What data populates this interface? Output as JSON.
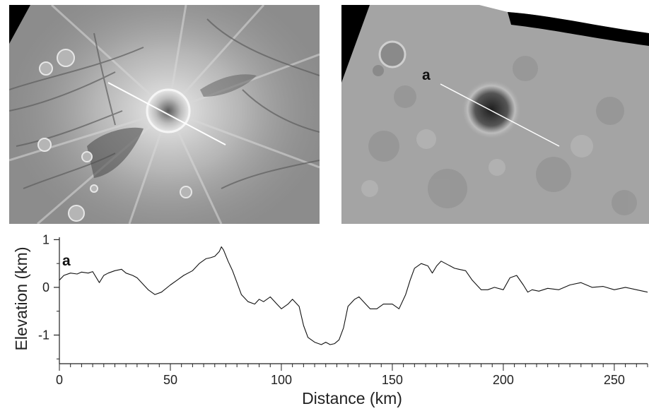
{
  "left_panel": {},
  "right_panel": {
    "profile_label": "a"
  },
  "chart_data": {
    "type": "line",
    "panel_label": "a",
    "xlabel": "Distance (km)",
    "ylabel": "Elevation (km)",
    "xlim": [
      0,
      265
    ],
    "ylim": [
      -1.6,
      1.05
    ],
    "xticks": [
      0,
      50,
      100,
      150,
      200,
      250
    ],
    "yticks": [
      1,
      0,
      -1
    ],
    "xtick_labels": [
      "0",
      "50",
      "100",
      "150",
      "200",
      "250"
    ],
    "ytick_labels": [
      "1",
      "0",
      "-1"
    ],
    "series": [
      {
        "color": "#111111",
        "x": [
          0,
          2,
          5,
          8,
          10,
          13,
          15,
          18,
          20,
          22,
          25,
          28,
          30,
          33,
          35,
          38,
          40,
          43,
          46,
          50,
          53,
          56,
          60,
          63,
          66,
          68,
          70,
          72,
          73,
          74,
          76,
          78,
          80,
          82,
          85,
          88,
          90,
          92,
          95,
          98,
          100,
          103,
          105,
          108,
          110,
          112,
          115,
          118,
          120,
          122,
          124,
          126,
          128,
          130,
          133,
          135,
          138,
          140,
          143,
          146,
          150,
          153,
          156,
          158,
          160,
          163,
          166,
          168,
          170,
          172,
          174,
          176,
          178,
          180,
          183,
          186,
          190,
          193,
          196,
          200,
          203,
          206,
          209,
          211,
          213,
          216,
          220,
          225,
          230,
          235,
          240,
          245,
          250,
          255,
          260,
          265
        ],
        "y": [
          0.15,
          0.25,
          0.3,
          0.28,
          0.32,
          0.3,
          0.33,
          0.1,
          0.25,
          0.3,
          0.35,
          0.38,
          0.3,
          0.25,
          0.2,
          0.05,
          -0.05,
          -0.15,
          -0.1,
          0.05,
          0.15,
          0.25,
          0.35,
          0.5,
          0.6,
          0.62,
          0.65,
          0.75,
          0.85,
          0.78,
          0.55,
          0.35,
          0.1,
          -0.15,
          -0.3,
          -0.35,
          -0.25,
          -0.3,
          -0.2,
          -0.35,
          -0.45,
          -0.35,
          -0.25,
          -0.4,
          -0.8,
          -1.05,
          -1.15,
          -1.2,
          -1.15,
          -1.2,
          -1.18,
          -1.1,
          -0.85,
          -0.4,
          -0.25,
          -0.2,
          -0.35,
          -0.45,
          -0.45,
          -0.35,
          -0.35,
          -0.45,
          -0.15,
          0.15,
          0.4,
          0.5,
          0.45,
          0.3,
          0.45,
          0.55,
          0.5,
          0.45,
          0.4,
          0.38,
          0.35,
          0.15,
          -0.05,
          -0.05,
          0.0,
          -0.05,
          0.2,
          0.25,
          0.05,
          -0.1,
          -0.05,
          -0.08,
          -0.02,
          -0.05,
          0.05,
          0.1,
          0.0,
          0.02,
          -0.05,
          0.0,
          -0.05,
          -0.1
        ]
      }
    ]
  }
}
